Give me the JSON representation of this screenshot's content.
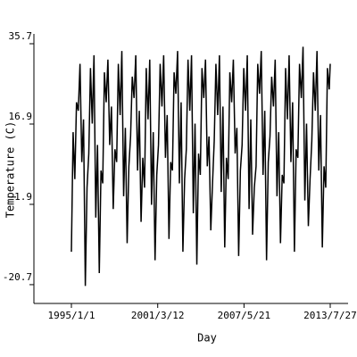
{
  "chart_data": {
    "type": "line",
    "x_label": "Day",
    "y_label": "Temperature (C)",
    "color": "#000000",
    "x": [
      "1995/1/1",
      "1995/2/15",
      "1995/4/1",
      "1995/5/15",
      "1995/7/1",
      "1995/8/15",
      "1995/10/1",
      "1995/11/15",
      "1996/1/1",
      "1996/2/15",
      "1996/4/1",
      "1996/5/15",
      "1996/7/1",
      "1996/8/15",
      "1996/10/1",
      "1996/11/15",
      "1997/1/1",
      "1997/2/15",
      "1997/4/1",
      "1997/5/15",
      "1997/7/1",
      "1997/8/15",
      "1997/10/1",
      "1997/11/15",
      "1998/1/1",
      "1998/2/15",
      "1998/4/1",
      "1998/5/15",
      "1998/7/1",
      "1998/8/15",
      "1998/10/1",
      "1998/11/15",
      "1999/1/1",
      "1999/2/15",
      "1999/4/1",
      "1999/5/15",
      "1999/7/1",
      "1999/8/15",
      "1999/10/1",
      "1999/11/15",
      "2000/1/1",
      "2000/2/15",
      "2000/4/1",
      "2000/5/15",
      "2000/7/1",
      "2000/8/15",
      "2000/10/1",
      "2000/11/15",
      "2001/1/1",
      "2001/2/15",
      "2001/4/1",
      "2001/5/15",
      "2001/7/1",
      "2001/8/15",
      "2001/10/1",
      "2001/11/15",
      "2002/1/1",
      "2002/2/15",
      "2002/4/1",
      "2002/5/15",
      "2002/7/1",
      "2002/8/15",
      "2002/10/1",
      "2002/11/15",
      "2003/1/1",
      "2003/2/15",
      "2003/4/1",
      "2003/5/15",
      "2003/7/1",
      "2003/8/15",
      "2003/10/1",
      "2003/11/15",
      "2004/1/1",
      "2004/2/15",
      "2004/4/1",
      "2004/5/15",
      "2004/7/1",
      "2004/8/15",
      "2004/10/1",
      "2004/11/15",
      "2005/1/1",
      "2005/2/15",
      "2005/4/1",
      "2005/5/15",
      "2005/7/1",
      "2005/8/15",
      "2005/10/1",
      "2005/11/15",
      "2006/1/1",
      "2006/2/15",
      "2006/4/1",
      "2006/5/15",
      "2006/7/1",
      "2006/8/15",
      "2006/10/1",
      "2006/11/15",
      "2007/1/1",
      "2007/2/15",
      "2007/4/1",
      "2007/5/15",
      "2007/7/1",
      "2007/8/15",
      "2007/10/1",
      "2007/11/15",
      "2008/1/1",
      "2008/2/15",
      "2008/4/1",
      "2008/5/15",
      "2008/7/1",
      "2008/8/15",
      "2008/10/1",
      "2008/11/15",
      "2009/1/1",
      "2009/2/15",
      "2009/4/1",
      "2009/5/15",
      "2009/7/1",
      "2009/8/15",
      "2009/10/1",
      "2009/11/15",
      "2010/1/1",
      "2010/2/15",
      "2010/4/1",
      "2010/5/15",
      "2010/7/1",
      "2010/8/15",
      "2010/10/1",
      "2010/11/15",
      "2011/1/1",
      "2011/2/15",
      "2011/4/1",
      "2011/5/15",
      "2011/7/1",
      "2011/8/15",
      "2011/10/1",
      "2011/11/15",
      "2012/1/1",
      "2012/2/15",
      "2012/4/1",
      "2012/5/15",
      "2012/7/1",
      "2012/8/15",
      "2012/10/1",
      "2012/11/15",
      "2013/1/1",
      "2013/2/15",
      "2013/4/1",
      "2013/5/15",
      "2013/7/1",
      "2013/7/27"
    ],
    "values": [
      -13,
      15,
      4,
      22,
      20,
      31,
      8,
      18,
      -21,
      2,
      10,
      30,
      17,
      33,
      -5,
      12,
      -18,
      6,
      3,
      29,
      22,
      32,
      12,
      21,
      -3,
      11,
      8,
      31,
      19,
      34,
      0,
      16,
      -11,
      7,
      14,
      28,
      23,
      33,
      6,
      20,
      -6,
      9,
      2,
      30,
      18,
      32,
      -2,
      15,
      -15,
      5,
      12,
      31,
      21,
      33,
      9,
      19,
      -10,
      8,
      6,
      29,
      24,
      34,
      3,
      22,
      -13,
      4,
      11,
      32,
      20,
      33,
      -4,
      17,
      -16,
      10,
      5,
      30,
      23,
      32,
      7,
      14,
      -8,
      3,
      13,
      31,
      19,
      33,
      1,
      21,
      -12,
      9,
      4,
      29,
      22,
      32,
      10,
      16,
      -14,
      6,
      12,
      30,
      20,
      33,
      -3,
      18,
      -9,
      2,
      7,
      31,
      24,
      34,
      5,
      20,
      -15,
      8,
      14,
      28,
      21,
      32,
      0,
      15,
      -11,
      5,
      3,
      30,
      18,
      33,
      8,
      22,
      -13,
      11,
      9,
      31,
      23,
      35,
      -1,
      17,
      -7,
      4,
      13,
      29,
      20,
      34,
      6,
      19,
      -12,
      7,
      2,
      30,
      25,
      31
    ],
    "xlim": [
      "1992/4/24",
      "2014/11/7"
    ],
    "xticks": [
      "1995/1/1",
      "2001/3/12",
      "2007/5/21",
      "2013/7/27"
    ],
    "ylim": [
      -25.1,
      38.0
    ],
    "yticks": [
      -20.7,
      -1.9,
      16.9,
      35.7
    ]
  }
}
